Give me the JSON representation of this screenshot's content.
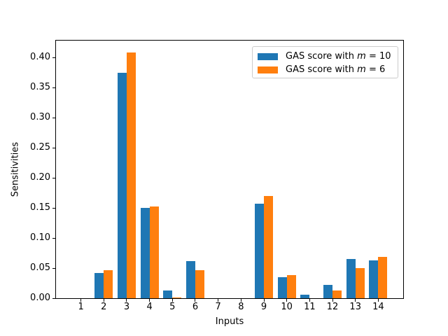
{
  "chart_data": {
    "type": "bar",
    "title": "",
    "xlabel": "Inputs",
    "ylabel": "Sensitivities",
    "categories": [
      "1",
      "2",
      "3",
      "4",
      "5",
      "6",
      "7",
      "8",
      "9",
      "10",
      "11",
      "12",
      "13",
      "14"
    ],
    "series": [
      {
        "name": "GAS score with m = 10",
        "color": "#1f77b4",
        "values": [
          0.0,
          0.042,
          0.375,
          0.15,
          0.013,
          0.062,
          0.0,
          0.0,
          0.157,
          0.035,
          0.006,
          0.022,
          0.065,
          0.063
        ]
      },
      {
        "name": "GAS score with m = 6",
        "color": "#ff7f0e",
        "values": [
          0.0,
          0.046,
          0.408,
          0.152,
          0.001,
          0.046,
          0.0,
          0.0,
          0.17,
          0.038,
          0.0,
          0.013,
          0.05,
          0.069
        ]
      }
    ],
    "bar_group_width": 0.8,
    "xlim": [
      -0.09,
      15.09
    ],
    "ylim": [
      0,
      0.428
    ],
    "yticks": [
      0.0,
      0.05,
      0.1,
      0.15,
      0.2,
      0.25,
      0.3,
      0.35,
      0.4
    ],
    "ytick_decimals": 2,
    "grid": false,
    "legend_position": "upper right"
  },
  "legend": {
    "items": [
      {
        "prefix": "GAS score with ",
        "math_var": "m",
        "suffix": " = 10"
      },
      {
        "prefix": "GAS score with ",
        "math_var": "m",
        "suffix": " = 6"
      }
    ]
  }
}
